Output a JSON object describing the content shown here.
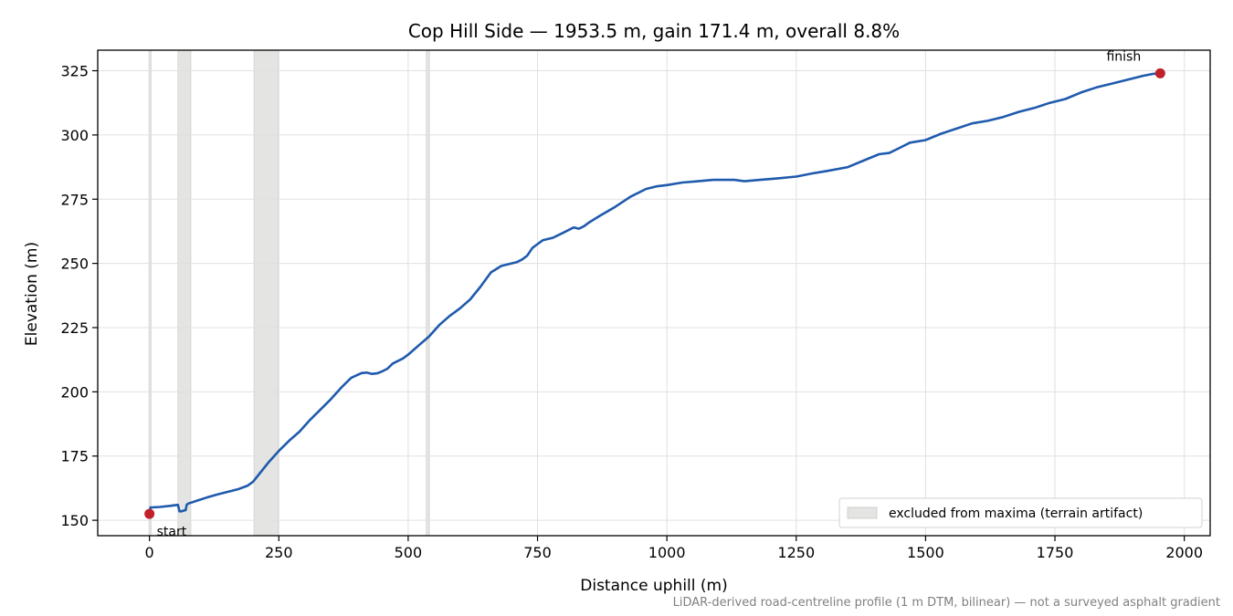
{
  "chart_data": {
    "type": "line",
    "title": "Cop Hill Side — 1953.5 m, gain 171.4 m, overall 8.8%",
    "xlabel": "Distance uphill (m)",
    "ylabel": "Elevation (m)",
    "xlim": [
      -100,
      2050
    ],
    "ylim": [
      144,
      333
    ],
    "xticks": [
      0,
      250,
      500,
      750,
      1000,
      1250,
      1500,
      1750,
      2000
    ],
    "yticks": [
      150,
      175,
      200,
      225,
      250,
      275,
      300,
      325
    ],
    "grid": true,
    "footnote": "LiDAR-derived road-centreline profile (1 m DTM, bilinear) — not a surveyed asphalt gradient",
    "legend": {
      "position": "lower-right",
      "entries": [
        "excluded from maxima (terrain artifact)"
      ]
    },
    "colors": {
      "line": "#1f5aad",
      "marker": "#c0202a",
      "band": "#e4e4e2",
      "grid": "#e0e0e0"
    },
    "excluded_ranges": [
      [
        -1,
        3
      ],
      [
        55,
        80
      ],
      [
        202,
        249
      ],
      [
        535,
        541
      ]
    ],
    "annotations": [
      {
        "label": "start",
        "x": 0,
        "y": 152.5
      },
      {
        "label": "finish",
        "x": 1953.5,
        "y": 324
      }
    ],
    "series": [
      {
        "x": [
          0,
          2,
          5,
          20,
          40,
          55,
          58,
          62,
          70,
          72,
          75,
          90,
          110,
          130,
          150,
          170,
          190,
          200,
          210,
          230,
          250,
          270,
          290,
          310,
          330,
          350,
          370,
          390,
          410,
          420,
          430,
          440,
          450,
          460,
          470,
          480,
          490,
          500,
          520,
          540,
          560,
          580,
          600,
          620,
          640,
          660,
          680,
          700,
          710,
          720,
          730,
          740,
          750,
          760,
          770,
          780,
          790,
          800,
          820,
          830,
          840,
          850,
          870,
          900,
          930,
          960,
          980,
          1000,
          1030,
          1060,
          1090,
          1130,
          1150,
          1180,
          1210,
          1250,
          1280,
          1310,
          1350,
          1380,
          1410,
          1430,
          1450,
          1470,
          1500,
          1530,
          1560,
          1590,
          1620,
          1650,
          1680,
          1710,
          1740,
          1770,
          1800,
          1830,
          1860,
          1890,
          1920,
          1940,
          1953.5
        ],
        "y": [
          152.5,
          155,
          155,
          155.2,
          155.6,
          156,
          153.5,
          153.5,
          154,
          156,
          156.5,
          157.5,
          158.8,
          160,
          161,
          162,
          163.5,
          165,
          167.5,
          172.5,
          177,
          181,
          184.5,
          189,
          193,
          197,
          201.5,
          205.5,
          207.3,
          207.5,
          207,
          207.2,
          208,
          209,
          211,
          212,
          213,
          214.5,
          218,
          221.5,
          226,
          229.5,
          232.5,
          236,
          241,
          246.5,
          249,
          250,
          250.5,
          251.5,
          253,
          256,
          257.5,
          259,
          259.5,
          260,
          261,
          262,
          264,
          263.5,
          264.5,
          266,
          268.5,
          272,
          276,
          279,
          280,
          280.5,
          281.5,
          282,
          282.5,
          282.5,
          282,
          282.5,
          283,
          283.8,
          285,
          286,
          287.5,
          290,
          292.5,
          293,
          295,
          297,
          298,
          300.5,
          302.5,
          304.5,
          305.5,
          307,
          309,
          310.5,
          312.5,
          314,
          316.5,
          318.5,
          320,
          321.5,
          323,
          323.8,
          324
        ]
      }
    ]
  }
}
